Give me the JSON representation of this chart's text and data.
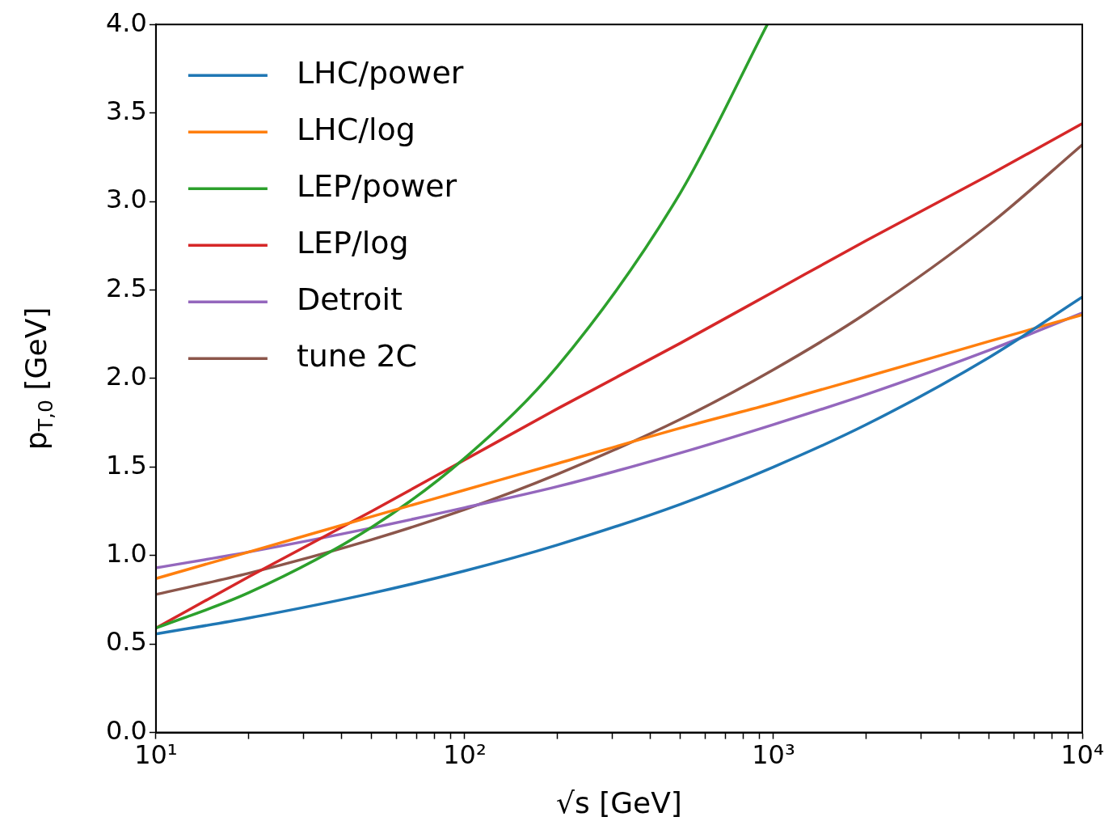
{
  "chart_data": {
    "type": "line",
    "xlabel": "√s [GeV]",
    "ylabel": "p$_{T,0}$ [GeV]",
    "log": "x",
    "grid": false,
    "legend": "top left",
    "line_style": "solid",
    "marker": "none",
    "x": [
      10,
      20,
      50,
      100,
      200,
      500,
      1000,
      2000,
      5000,
      10000
    ],
    "xlim": [
      10,
      10000
    ],
    "xticks": [
      {
        "value": 10,
        "label": "10¹"
      },
      {
        "value": 20,
        "label": null
      },
      {
        "value": 30,
        "label": null
      },
      {
        "value": 40,
        "label": null
      },
      {
        "value": 50,
        "label": null
      },
      {
        "value": 60,
        "label": null
      },
      {
        "value": 70,
        "label": null
      },
      {
        "value": 80,
        "label": null
      },
      {
        "value": 90,
        "label": null
      },
      {
        "value": 100,
        "label": "10²"
      },
      {
        "value": 200,
        "label": null
      },
      {
        "value": 300,
        "label": null
      },
      {
        "value": 400,
        "label": null
      },
      {
        "value": 500,
        "label": null
      },
      {
        "value": 600,
        "label": null
      },
      {
        "value": 700,
        "label": null
      },
      {
        "value": 800,
        "label": null
      },
      {
        "value": 900,
        "label": null
      },
      {
        "value": 1000,
        "label": "10³"
      },
      {
        "value": 2000,
        "label": null
      },
      {
        "value": 3000,
        "label": null
      },
      {
        "value": 4000,
        "label": null
      },
      {
        "value": 5000,
        "label": null
      },
      {
        "value": 6000,
        "label": null
      },
      {
        "value": 7000,
        "label": null
      },
      {
        "value": 8000,
        "label": null
      },
      {
        "value": 9000,
        "label": null
      },
      {
        "value": 10000,
        "label": "10⁴"
      }
    ],
    "ylim": [
      0,
      4
    ],
    "yticks": [
      {
        "value": 0,
        "label": "0.0"
      },
      {
        "value": 0.5,
        "label": "0.5"
      },
      {
        "value": 1,
        "label": "1.0"
      },
      {
        "value": 1.5,
        "label": "1.5"
      },
      {
        "value": 2,
        "label": "2.0"
      },
      {
        "value": 2.5,
        "label": "2.5"
      },
      {
        "value": 3,
        "label": "3.0"
      },
      {
        "value": 3.5,
        "label": "3.5"
      },
      {
        "value": 4,
        "label": "4.0"
      }
    ],
    "series": [
      {
        "name": "LHC/power",
        "color": "#1f77b4",
        "values": [
          0.557,
          0.647,
          0.787,
          0.913,
          1.06,
          1.29,
          1.5,
          1.74,
          2.12,
          2.46
        ]
      },
      {
        "name": "LHC/log",
        "color": "#ff7f0e",
        "values": [
          0.87,
          1.02,
          1.22,
          1.37,
          1.52,
          1.72,
          1.86,
          2.01,
          2.21,
          2.36
        ]
      },
      {
        "name": "LEP/power",
        "color": "#2ca02c",
        "x": [
          10,
          20,
          50,
          100,
          200,
          500,
          955
        ],
        "values": [
          0.59,
          0.79,
          1.16,
          1.55,
          2.07,
          3.05,
          4.0
        ]
      },
      {
        "name": "LEP/log",
        "color": "#d62728",
        "values": [
          0.59,
          0.88,
          1.25,
          1.54,
          1.83,
          2.2,
          2.49,
          2.78,
          3.15,
          3.44
        ]
      },
      {
        "name": "Detroit",
        "color": "#9467bd",
        "values": [
          0.93,
          1.02,
          1.156,
          1.27,
          1.39,
          1.58,
          1.74,
          1.91,
          2.16,
          2.37
        ]
      },
      {
        "name": "tune 2C",
        "color": "#8c564b",
        "values": [
          0.78,
          0.9,
          1.09,
          1.26,
          1.46,
          1.77,
          2.05,
          2.37,
          2.87,
          3.32
        ]
      }
    ]
  }
}
